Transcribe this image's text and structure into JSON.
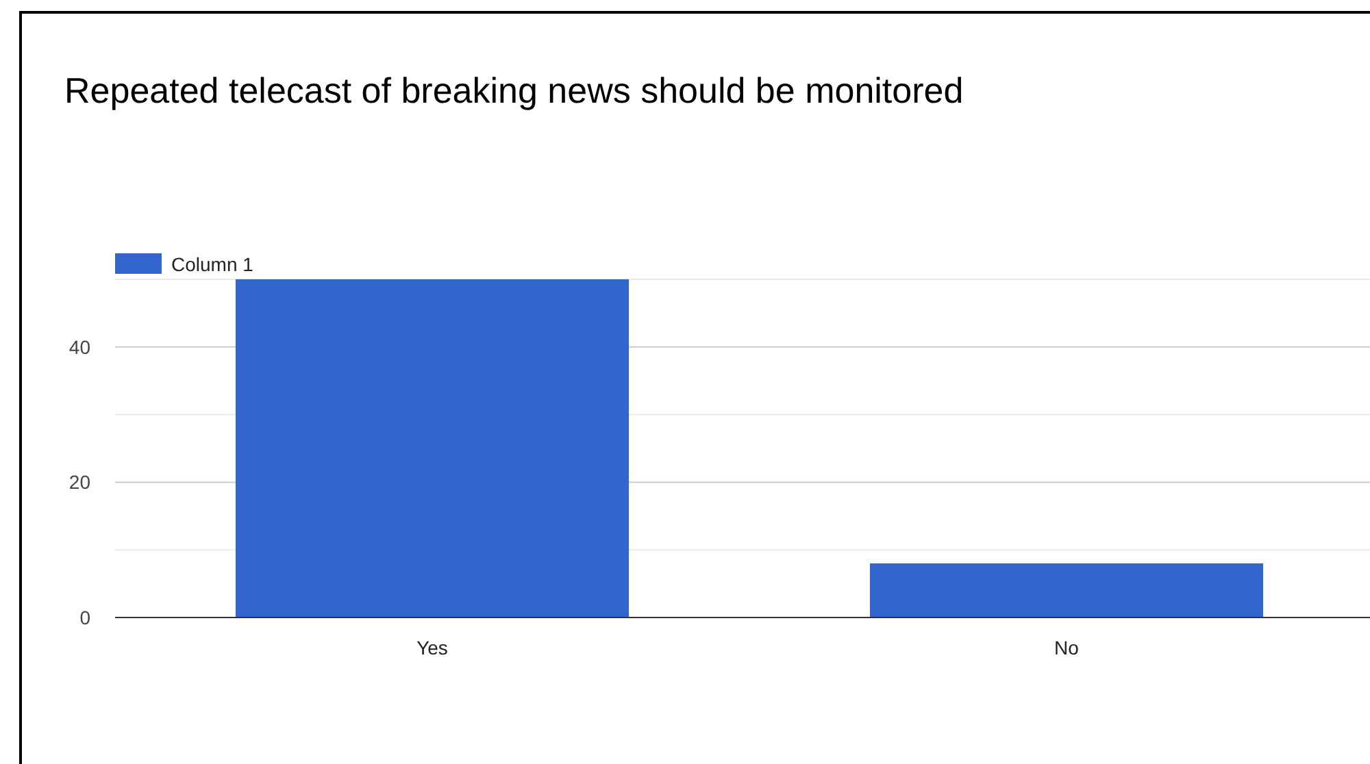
{
  "chart_data": {
    "type": "bar",
    "title": "Repeated telecast of breaking news should be monitored",
    "categories": [
      "Yes",
      "No"
    ],
    "series": [
      {
        "name": "Column 1",
        "color": "#3366cc",
        "values": [
          50,
          8
        ]
      }
    ],
    "ylim": [
      0,
      50
    ],
    "yticks": [
      0,
      {
        "value": 10,
        "label": null
      },
      20,
      {
        "value": 30,
        "label": null
      },
      40,
      {
        "value": 50,
        "label": null
      }
    ],
    "grid": "y",
    "legend": "top left"
  }
}
